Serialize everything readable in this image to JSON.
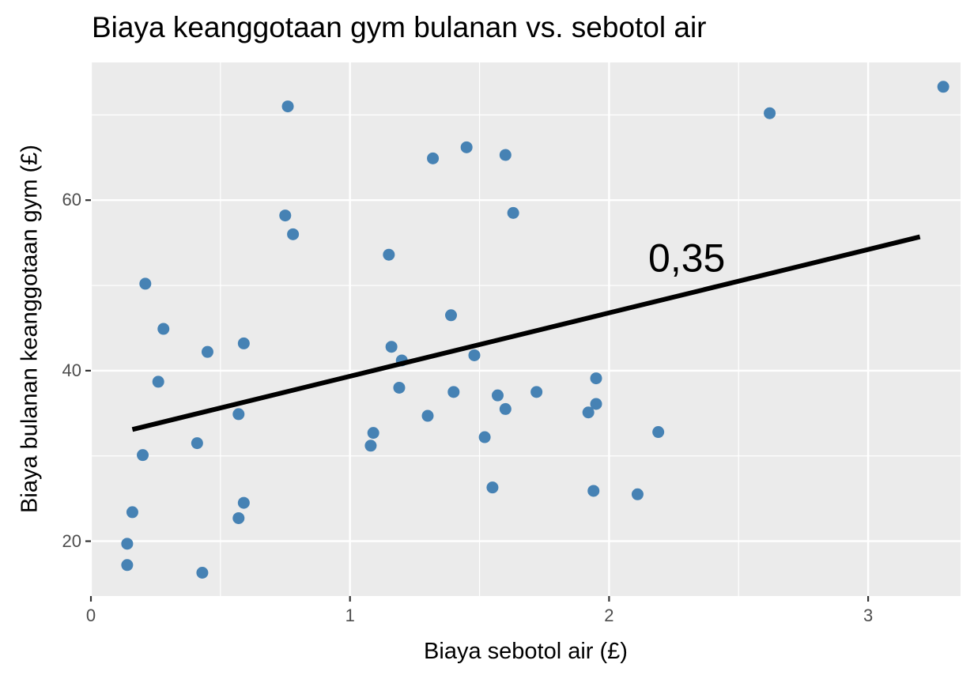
{
  "chart_data": {
    "type": "scatter",
    "title": "Biaya keanggotaan gym bulanan vs. sebotol air",
    "xlabel": "Biaya sebotol air (£)",
    "ylabel": "Biaya bulanan keanggotaan gym (£)",
    "xlim": [
      -0.01,
      3.34
    ],
    "ylim": [
      13.4,
      75.9
    ],
    "x_ticks": [
      0,
      1,
      2,
      3
    ],
    "x_tick_labels": [
      "0",
      "1",
      "2",
      "3"
    ],
    "y_ticks": [
      20,
      40,
      60
    ],
    "y_tick_labels": [
      "20",
      "40",
      "60"
    ],
    "grid": true,
    "legend": null,
    "point_color": "#4682b4",
    "panel_background": "#ebebeb",
    "series": [
      {
        "name": "points",
        "x": [
          3.29,
          2.62,
          0.76,
          1.32,
          1.45,
          1.6,
          1.63,
          0.75,
          0.78,
          1.15,
          0.21,
          1.39,
          0.28,
          0.45,
          0.59,
          1.16,
          1.2,
          1.48,
          0.26,
          1.95,
          1.19,
          1.4,
          1.72,
          1.57,
          1.6,
          1.95,
          1.92,
          0.57,
          1.3,
          1.09,
          1.08,
          1.52,
          2.19,
          0.41,
          0.2,
          1.55,
          1.94,
          2.11,
          0.59,
          0.57,
          0.16,
          0.14,
          0.14,
          0.43
        ],
        "y": [
          73.3,
          70.2,
          71.0,
          64.9,
          66.2,
          65.3,
          58.5,
          58.2,
          56.0,
          53.6,
          50.2,
          46.5,
          44.9,
          42.2,
          43.2,
          42.8,
          41.2,
          41.8,
          38.7,
          39.1,
          38.0,
          37.5,
          37.5,
          37.1,
          35.5,
          36.1,
          35.1,
          34.9,
          34.7,
          32.7,
          31.2,
          32.2,
          32.8,
          31.5,
          30.1,
          26.3,
          25.9,
          25.5,
          24.5,
          22.7,
          23.4,
          19.7,
          17.2,
          16.3
        ]
      }
    ],
    "trend_line": {
      "x": [
        0.16,
        3.2
      ],
      "y": [
        33.1,
        55.7
      ],
      "color": "#000000"
    },
    "annotations": [
      {
        "text": "0,35",
        "x": 2.3,
        "y": 53.3
      }
    ]
  }
}
